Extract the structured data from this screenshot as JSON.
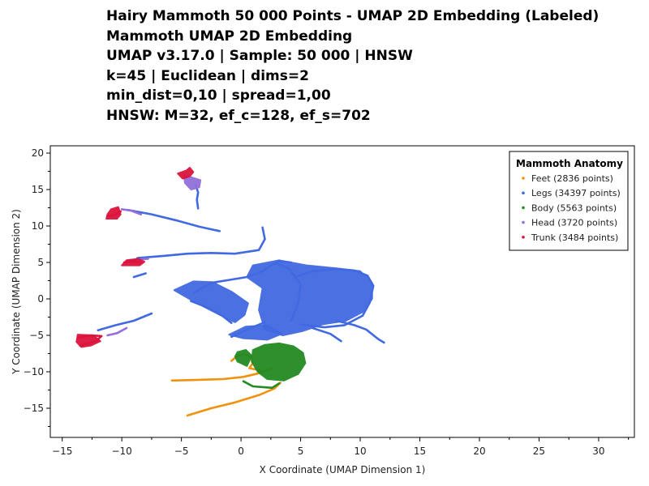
{
  "chart_data": {
    "type": "scatter",
    "title_lines": [
      "Hairy Mammoth 50 000 Points - UMAP 2D Embedding (Labeled)",
      "Mammoth UMAP 2D Embedding",
      "UMAP v3.17.0 | Sample: 50 000 | HNSW",
      "k=45 | Euclidean | dims=2",
      "min_dist=0,10 | spread=1,00",
      "HNSW: M=32, ef_c=128, ef_s=702"
    ],
    "xlabel": "X Coordinate (UMAP Dimension 1)",
    "ylabel": "Y Coordinate (UMAP Dimension 2)",
    "xlim": [
      -16,
      33
    ],
    "ylim": [
      -19,
      21
    ],
    "x_ticks": [
      -15,
      -10,
      -5,
      0,
      5,
      10,
      15,
      20,
      25,
      30
    ],
    "y_ticks": [
      -15,
      -10,
      -5,
      0,
      5,
      10,
      15,
      20
    ],
    "grid": false,
    "legend": {
      "title": "Mammoth Anatomy",
      "position": "top-right",
      "entries": [
        {
          "label": "Feet (2836 points)",
          "color": "#f0920c"
        },
        {
          "label": "Legs (34397 points)",
          "color": "#4169e1"
        },
        {
          "label": "Body (5563 points)",
          "color": "#228b22"
        },
        {
          "label": "Head (3720 points)",
          "color": "#9370db"
        },
        {
          "label": "Trunk (3484 points)",
          "color": "#dc143c"
        }
      ]
    },
    "series": [
      {
        "name": "Feet (2836 points)",
        "color": "#f0920c",
        "polylines": [
          [
            [
              -4.5,
              -16
            ],
            [
              -2.5,
              -15
            ],
            [
              -0.5,
              -14.2
            ],
            [
              1.5,
              -13.2
            ],
            [
              2.8,
              -12.3
            ],
            [
              3.3,
              -11.5
            ]
          ],
          [
            [
              -5.8,
              -11.2
            ],
            [
              -3.5,
              -11.1
            ],
            [
              -1.5,
              -11
            ],
            [
              0.2,
              -10.7
            ],
            [
              1.5,
              -10.2
            ],
            [
              2.6,
              -9.5
            ]
          ],
          [
            [
              -0.8,
              -8.5
            ],
            [
              -0.3,
              -7.8
            ],
            [
              0.3,
              -7.6
            ],
            [
              0.8,
              -8.0
            ],
            [
              1.0,
              -8.8
            ],
            [
              0.7,
              -9.5
            ],
            [
              1.6,
              -9.8
            ]
          ]
        ]
      },
      {
        "name": "Legs (34397 points)",
        "color": "#4169e1",
        "polylines": [
          [
            [
              -9.5,
              12.2
            ],
            [
              -7.5,
              11.6
            ],
            [
              -5.5,
              10.8
            ],
            [
              -3.5,
              9.9
            ],
            [
              -1.8,
              9.3
            ]
          ],
          [
            [
              -8.7,
              5.6
            ],
            [
              -6.5,
              5.9
            ],
            [
              -4.5,
              6.2
            ],
            [
              -2.5,
              6.3
            ],
            [
              -0.5,
              6.2
            ],
            [
              1.5,
              6.7
            ],
            [
              2.0,
              8.2
            ],
            [
              1.8,
              9.8
            ]
          ],
          [
            [
              -8.0,
              3.5
            ],
            [
              -9.0,
              3.0
            ]
          ],
          [
            [
              -12.0,
              -4.3
            ],
            [
              -10.5,
              -3.6
            ],
            [
              -9.0,
              -3.0
            ],
            [
              -7.5,
              -2.0
            ]
          ],
          [
            [
              -3.8,
              15.6
            ],
            [
              -3.6,
              14.6
            ],
            [
              -3.7,
              13.6
            ],
            [
              -3.6,
              12.4
            ]
          ],
          [
            [
              -4.0,
              0.8
            ],
            [
              -2.5,
              2.2
            ],
            [
              -1.0,
              2.6
            ],
            [
              0.5,
              3.0
            ],
            [
              1.8,
              3.8
            ],
            [
              2.5,
              4.6
            ],
            [
              3.2,
              5.2
            ],
            [
              4.2,
              5.0
            ]
          ],
          [
            [
              -4.2,
              -0.3
            ],
            [
              -2.8,
              -1.2
            ],
            [
              -1.5,
              -2.4
            ],
            [
              -0.8,
              -3.3
            ]
          ],
          [
            [
              -0.8,
              -5.2
            ],
            [
              0.5,
              -4.2
            ],
            [
              2.0,
              -3.2
            ]
          ],
          [
            [
              4.5,
              3.0
            ],
            [
              6.0,
              3.8
            ],
            [
              8.0,
              4.1
            ],
            [
              9.5,
              3.9
            ],
            [
              10.6,
              3.2
            ],
            [
              11.1,
              1.8
            ],
            [
              10.8,
              -0.5
            ],
            [
              10.2,
              -2.3
            ],
            [
              8.7,
              -3.6
            ],
            [
              7.0,
              -3.9
            ],
            [
              5.0,
              -3.5
            ]
          ],
          [
            [
              6.0,
              -4.0
            ],
            [
              7.5,
              -4.8
            ],
            [
              8.4,
              -5.8
            ]
          ],
          [
            [
              8.0,
              -3.0
            ],
            [
              9.5,
              -3.6
            ],
            [
              10.5,
              -4.2
            ],
            [
              11.5,
              -5.5
            ],
            [
              12.0,
              -6.0
            ]
          ],
          [
            [
              3.0,
              4.8
            ],
            [
              4.0,
              4.2
            ],
            [
              5.0,
              2.0
            ],
            [
              4.8,
              -0.5
            ],
            [
              4.2,
              -3.0
            ]
          ]
        ],
        "regions": [
          [
            [
              1.0,
              4.6
            ],
            [
              3.2,
              5.3
            ],
            [
              5.5,
              4.6
            ],
            [
              8.0,
              4.2
            ],
            [
              10.0,
              3.8
            ],
            [
              11.0,
              2.2
            ],
            [
              11.0,
              0.0
            ],
            [
              10.2,
              -1.8
            ],
            [
              8.8,
              -3.0
            ],
            [
              6.8,
              -3.5
            ],
            [
              5.2,
              -4.4
            ],
            [
              3.5,
              -5.0
            ],
            [
              2.0,
              -4.2
            ],
            [
              1.5,
              -1.5
            ],
            [
              1.8,
              1.5
            ],
            [
              0.5,
              3.0
            ]
          ],
          [
            [
              -5.6,
              1.2
            ],
            [
              -4.0,
              2.4
            ],
            [
              -2.4,
              2.3
            ],
            [
              -0.8,
              1.0
            ],
            [
              0.6,
              -0.6
            ],
            [
              0.3,
              -2.2
            ],
            [
              -0.5,
              -3.2
            ],
            [
              -2.0,
              -2.0
            ],
            [
              -3.8,
              -0.5
            ]
          ],
          [
            [
              -1.0,
              -4.9
            ],
            [
              0.4,
              -3.8
            ],
            [
              2.2,
              -3.6
            ],
            [
              3.4,
              -4.8
            ],
            [
              2.2,
              -5.6
            ],
            [
              0.2,
              -5.4
            ]
          ]
        ]
      },
      {
        "name": "Body (5563 points)",
        "color": "#228b22",
        "polylines": [
          [
            [
              3.2,
              -11.6
            ],
            [
              2.6,
              -12.2
            ],
            [
              1.0,
              -12.0
            ],
            [
              0.2,
              -11.3
            ]
          ]
        ],
        "regions": [
          [
            [
              1.0,
              -7.0
            ],
            [
              2.0,
              -6.3
            ],
            [
              3.2,
              -6.1
            ],
            [
              4.4,
              -6.5
            ],
            [
              5.2,
              -7.4
            ],
            [
              5.4,
              -8.8
            ],
            [
              4.8,
              -10.3
            ],
            [
              3.6,
              -11.2
            ],
            [
              2.2,
              -11.0
            ],
            [
              1.4,
              -10.0
            ],
            [
              0.9,
              -8.6
            ]
          ],
          [
            [
              -0.3,
              -7.3
            ],
            [
              0.4,
              -7.0
            ],
            [
              0.9,
              -7.8
            ],
            [
              0.5,
              -9.2
            ],
            [
              -0.3,
              -8.6
            ],
            [
              -0.5,
              -7.9
            ]
          ]
        ]
      },
      {
        "name": "Head (3720 points)",
        "color": "#9370db",
        "polylines": [
          [
            [
              -10.0,
              12.3
            ],
            [
              -9.2,
              12.1
            ],
            [
              -8.4,
              11.6
            ]
          ],
          [
            [
              -9.5,
              5.2
            ],
            [
              -8.7,
              5.4
            ],
            [
              -7.8,
              5.5
            ]
          ],
          [
            [
              -11.2,
              -5.0
            ],
            [
              -10.4,
              -4.7
            ],
            [
              -9.6,
              -4.0
            ]
          ]
        ],
        "regions": [
          [
            [
              -4.8,
              17.0
            ],
            [
              -4.0,
              16.6
            ],
            [
              -3.4,
              16.3
            ],
            [
              -3.5,
              15.3
            ],
            [
              -4.2,
              15.0
            ],
            [
              -4.7,
              15.9
            ]
          ]
        ]
      },
      {
        "name": "Trunk (3484 points)",
        "color": "#dc143c",
        "polylines": [
          [
            [
              -11.2,
              11.4
            ],
            [
              -10.6,
              11.5
            ],
            [
              -10.1,
              12.0
            ]
          ],
          [
            [
              -9.8,
              5.0
            ],
            [
              -9.2,
              5.1
            ],
            [
              -8.4,
              5.0
            ]
          ],
          [
            [
              -13.6,
              -5.3
            ],
            [
              -12.6,
              -5.0
            ],
            [
              -11.7,
              -5.1
            ],
            [
              -12.2,
              -5.8
            ],
            [
              -13.5,
              -6.4
            ]
          ]
        ],
        "regions": [
          [
            [
              -5.3,
              17.2
            ],
            [
              -4.6,
              17.6
            ],
            [
              -4.3,
              18.0
            ],
            [
              -4.0,
              17.4
            ],
            [
              -4.3,
              16.8
            ],
            [
              -4.9,
              16.5
            ]
          ],
          [
            [
              -11.3,
              11.0
            ],
            [
              -10.4,
              11.0
            ],
            [
              -10.1,
              11.6
            ],
            [
              -10.3,
              12.6
            ],
            [
              -10.9,
              12.3
            ],
            [
              -11.2,
              11.6
            ]
          ],
          [
            [
              -10.0,
              4.6
            ],
            [
              -8.5,
              4.6
            ],
            [
              -8.1,
              5.1
            ],
            [
              -8.6,
              5.5
            ],
            [
              -9.6,
              5.3
            ]
          ],
          [
            [
              -13.7,
              -4.9
            ],
            [
              -12.4,
              -5.0
            ],
            [
              -11.8,
              -5.8
            ],
            [
              -12.6,
              -6.4
            ],
            [
              -13.4,
              -6.6
            ],
            [
              -13.8,
              -5.9
            ]
          ]
        ]
      }
    ]
  }
}
